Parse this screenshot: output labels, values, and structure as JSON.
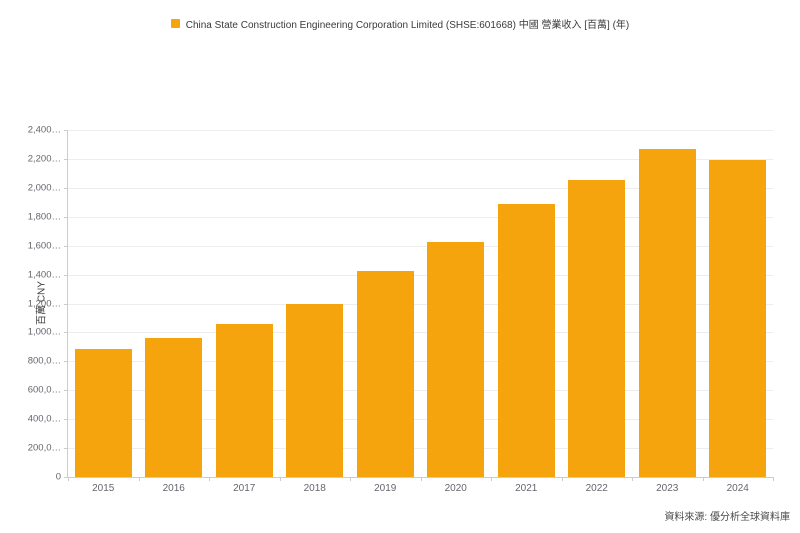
{
  "legend": {
    "label": "China State Construction Engineering Corporation Limited (SHSE:601668) 中國 營業收入 [百萬] (年)"
  },
  "chart_data": {
    "type": "bar",
    "title": "China State Construction Engineering Corporation Limited (SHSE:601668) 中國 營業收入 [百萬] (年)",
    "categories": [
      "2015",
      "2016",
      "2017",
      "2018",
      "2019",
      "2020",
      "2021",
      "2022",
      "2023",
      "2024"
    ],
    "values": [
      885000,
      960000,
      1055000,
      1200000,
      1425000,
      1625000,
      1890000,
      2055000,
      2270000,
      2190000
    ],
    "xlabel": "",
    "ylabel": "百萬 CNY",
    "ylim": [
      0,
      2400000
    ],
    "ytick_interval": 200000,
    "ytick_labels": [
      "0",
      "200,0…",
      "400,0…",
      "600,0…",
      "800,0…",
      "1,000…",
      "1,200…",
      "1,400…",
      "1,600…",
      "1,800…",
      "2,000…",
      "2,200…",
      "2,400…"
    ],
    "grid": true,
    "legend_position": "top-center"
  },
  "footer": {
    "source": "資料來源: 優分析全球資料庫"
  },
  "colors": {
    "bar": "#F6A40E",
    "grid_line": "#ededed",
    "axis_line": "#cccccc",
    "tick_text": "#65656e",
    "legend_text": "#3a3a3a"
  }
}
